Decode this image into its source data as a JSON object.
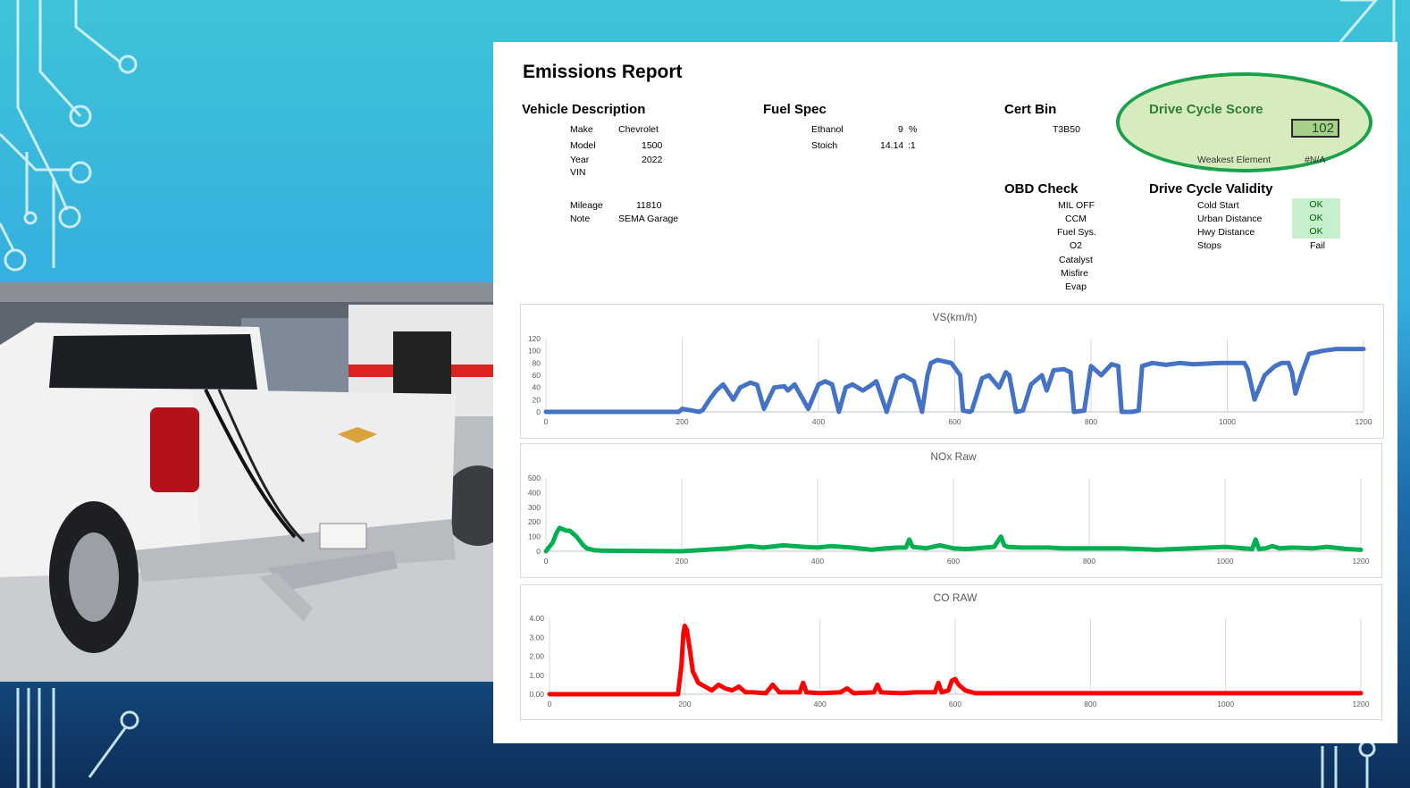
{
  "report": {
    "title": "Emissions Report",
    "vehicle_description": {
      "heading": "Vehicle Description",
      "make_label": "Make",
      "make": "Chevrolet",
      "model_label": "Model",
      "model": "1500",
      "year_label": "Year",
      "year": "2022",
      "vin_label": "VIN",
      "mileage_label": "Mileage",
      "mileage": "11810",
      "note_label": "Note",
      "note": "SEMA Garage"
    },
    "fuel_spec": {
      "heading": "Fuel Spec",
      "ethanol_label": "Ethanol",
      "ethanol": "9",
      "ethanol_unit": "%",
      "stoich_label": "Stoich",
      "stoich": "14.14",
      "stoich_unit": ":1"
    },
    "cert_bin": {
      "heading": "Cert Bin",
      "value": "T3B50"
    },
    "drive_cycle_score": {
      "heading": "Drive Cycle Score",
      "value": "102",
      "weakest_label": "Weakest Element",
      "weakest_value": "#N/A",
      "highlight_color": "#1aa14a"
    },
    "obd_check": {
      "heading": "OBD Check",
      "items": [
        "MIL OFF",
        "CCM",
        "Fuel Sys.",
        "O2",
        "Catalyst",
        "Misfire",
        "Evap"
      ]
    },
    "drive_cycle_validity": {
      "heading": "Drive Cycle Validity",
      "items": [
        {
          "label": "Cold Start",
          "status": "OK"
        },
        {
          "label": "Urban Distance",
          "status": "OK"
        },
        {
          "label": "Hwy Distance",
          "status": "OK"
        },
        {
          "label": "Stops",
          "status": "Fail"
        }
      ]
    }
  },
  "chart_data": [
    {
      "type": "line",
      "title": "VS(km/h)",
      "color": "#4472c4",
      "xlim": [
        0,
        1200
      ],
      "ylim": [
        0,
        120
      ],
      "x_ticks": [
        "0",
        "200",
        "400",
        "600",
        "800",
        "1000",
        "1200"
      ],
      "y_ticks": [
        "0",
        "20",
        "40",
        "60",
        "80",
        "100",
        "120"
      ],
      "grid": "vertical",
      "series": [
        {
          "x": [
            0,
            195,
            200,
            215,
            225,
            230,
            240,
            250,
            260,
            275,
            285,
            300,
            310,
            320,
            335,
            350,
            355,
            365,
            385,
            400,
            410,
            420,
            430,
            440,
            450,
            465,
            475,
            485,
            500,
            515,
            525,
            540,
            552,
            560,
            565,
            575,
            595,
            608,
            612,
            622,
            625,
            640,
            650,
            665,
            675,
            680,
            690,
            700,
            712,
            728,
            735,
            745,
            760,
            770,
            775,
            790,
            800,
            815,
            830,
            840,
            845,
            860,
            870,
            875,
            890,
            910,
            930,
            950,
            990,
            1025,
            1030,
            1040,
            1055,
            1070,
            1080,
            1090,
            1095,
            1100,
            1110,
            1120,
            1140,
            1160,
            1200
          ],
          "y": [
            0,
            0,
            5,
            2,
            0,
            3,
            20,
            35,
            45,
            20,
            40,
            48,
            44,
            5,
            40,
            42,
            35,
            45,
            5,
            45,
            50,
            45,
            0,
            40,
            45,
            35,
            42,
            50,
            0,
            55,
            60,
            50,
            0,
            60,
            80,
            85,
            80,
            60,
            2,
            0,
            2,
            55,
            60,
            40,
            65,
            60,
            0,
            2,
            45,
            60,
            35,
            68,
            70,
            65,
            0,
            2,
            75,
            60,
            78,
            75,
            0,
            0,
            2,
            75,
            80,
            77,
            80,
            78,
            80,
            80,
            70,
            20,
            60,
            75,
            80,
            80,
            65,
            30,
            65,
            95,
            100,
            103,
            103
          ]
        }
      ]
    },
    {
      "type": "line",
      "title": "NOx Raw",
      "color": "#00b050",
      "xlim": [
        0,
        1200
      ],
      "ylim": [
        0,
        500
      ],
      "x_ticks": [
        "0",
        "200",
        "400",
        "600",
        "800",
        "1000",
        "1200"
      ],
      "y_ticks": [
        "0",
        "100",
        "200",
        "300",
        "400",
        "500"
      ],
      "grid": "vertical",
      "series": [
        {
          "x": [
            0,
            10,
            15,
            20,
            25,
            30,
            35,
            40,
            45,
            50,
            55,
            60,
            70,
            80,
            100,
            200,
            270,
            300,
            320,
            350,
            380,
            400,
            420,
            450,
            480,
            500,
            520,
            530,
            535,
            540,
            560,
            580,
            600,
            620,
            660,
            670,
            675,
            680,
            700,
            740,
            760,
            800,
            850,
            900,
            950,
            1000,
            1040,
            1045,
            1050,
            1060,
            1070,
            1080,
            1100,
            1130,
            1150,
            1180,
            1200
          ],
          "y": [
            0,
            60,
            120,
            160,
            150,
            140,
            140,
            120,
            100,
            70,
            40,
            20,
            8,
            5,
            3,
            0,
            20,
            35,
            25,
            40,
            30,
            25,
            35,
            25,
            10,
            20,
            25,
            25,
            80,
            30,
            20,
            40,
            20,
            15,
            30,
            100,
            40,
            30,
            25,
            25,
            20,
            20,
            20,
            10,
            20,
            30,
            15,
            80,
            15,
            20,
            35,
            20,
            25,
            20,
            30,
            15,
            10
          ]
        }
      ]
    },
    {
      "type": "line",
      "title": "CO RAW",
      "color": "#ff0000",
      "xlim": [
        0,
        1200
      ],
      "ylim": [
        0,
        4
      ],
      "x_ticks": [
        "0",
        "200",
        "400",
        "600",
        "800",
        "1000",
        "1200"
      ],
      "y_ticks": [
        "0.00",
        "1.00",
        "2.00",
        "3.00",
        "4.00"
      ],
      "grid": "vertical",
      "series": [
        {
          "x": [
            0,
            190,
            195,
            198,
            200,
            203,
            207,
            212,
            220,
            230,
            240,
            250,
            260,
            270,
            280,
            290,
            300,
            320,
            330,
            340,
            370,
            375,
            380,
            400,
            430,
            440,
            450,
            480,
            485,
            490,
            520,
            540,
            570,
            575,
            580,
            590,
            595,
            600,
            605,
            615,
            630,
            700,
            800,
            900,
            1000,
            1100,
            1200
          ],
          "y": [
            0,
            0,
            1.5,
            3.2,
            3.6,
            3.4,
            2.5,
            1.2,
            0.6,
            0.4,
            0.2,
            0.5,
            0.3,
            0.2,
            0.4,
            0.1,
            0.1,
            0.05,
            0.5,
            0.1,
            0.1,
            0.6,
            0.1,
            0.05,
            0.1,
            0.3,
            0.05,
            0.1,
            0.5,
            0.1,
            0.05,
            0.1,
            0.1,
            0.6,
            0.1,
            0.2,
            0.7,
            0.8,
            0.5,
            0.2,
            0.05,
            0.05,
            0.05,
            0.05,
            0.05,
            0.05,
            0.05
          ]
        }
      ]
    }
  ]
}
